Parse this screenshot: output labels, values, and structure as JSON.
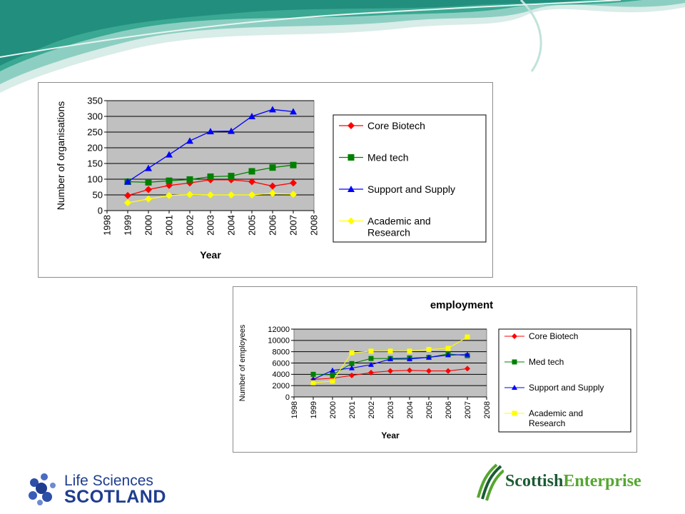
{
  "colors": {
    "plot_bg": "#c0c0c0",
    "core": "#ff0000",
    "med": "#008000",
    "support": "#0000ff",
    "academic": "#ffff00",
    "swoosh_teal": "#2a9d8f",
    "swoosh_light": "#a8d8d0"
  },
  "chart_data": [
    {
      "type": "line",
      "title": "",
      "xlabel": "Year",
      "ylabel": "Number of organisations",
      "categories": [
        "1998",
        "1999",
        "2000",
        "2001",
        "2002",
        "2003",
        "2004",
        "2005",
        "2006",
        "2007",
        "2008"
      ],
      "ylim": [
        0,
        350
      ],
      "yticks": [
        "0",
        "50",
        "100",
        "150",
        "200",
        "250",
        "300",
        "350"
      ],
      "grid": true,
      "legend_position": "right",
      "series": [
        {
          "name": "Core Biotech",
          "marker": "diamond",
          "values": [
            null,
            48,
            67,
            80,
            88,
            98,
            98,
            92,
            78,
            88,
            null
          ]
        },
        {
          "name": "Med tech",
          "marker": "square",
          "values": [
            null,
            92,
            90,
            95,
            99,
            108,
            110,
            125,
            137,
            145,
            null
          ]
        },
        {
          "name": "Support and Supply",
          "marker": "triangle",
          "values": [
            null,
            92,
            135,
            178,
            222,
            252,
            253,
            300,
            322,
            315,
            null
          ]
        },
        {
          "name": "Academic and Research",
          "marker": "diamond",
          "values": [
            null,
            25,
            37,
            48,
            51,
            50,
            50,
            50,
            55,
            52,
            null
          ]
        }
      ]
    },
    {
      "type": "line",
      "title": "employment",
      "xlabel": "Year",
      "ylabel": "Number of employees",
      "categories": [
        "1998",
        "1999",
        "2000",
        "2001",
        "2002",
        "2003",
        "2004",
        "2005",
        "2006",
        "2007",
        "2008"
      ],
      "ylim": [
        0,
        12000
      ],
      "yticks": [
        "0",
        "2000",
        "4000",
        "6000",
        "8000",
        "10000",
        "12000"
      ],
      "grid": true,
      "legend_position": "right",
      "series": [
        {
          "name": "Core Biotech",
          "marker": "diamond",
          "values": [
            null,
            3100,
            3300,
            3800,
            4300,
            4600,
            4700,
            4600,
            4600,
            5000,
            null
          ]
        },
        {
          "name": "Med tech",
          "marker": "square",
          "values": [
            null,
            4000,
            3900,
            5900,
            6800,
            6800,
            6900,
            7000,
            7600,
            7300,
            null
          ]
        },
        {
          "name": "Support and Supply",
          "marker": "triangle",
          "values": [
            null,
            3100,
            4700,
            5100,
            5700,
            6700,
            6700,
            7000,
            7400,
            7500,
            null
          ]
        },
        {
          "name": "Academic and Research",
          "marker": "square",
          "values": [
            null,
            2500,
            2800,
            7800,
            8100,
            8100,
            8100,
            8400,
            8600,
            10600,
            null
          ]
        }
      ]
    }
  ],
  "logos": {
    "life_sciences_line1": "Life Sciences",
    "life_sciences_line2": "SCOTLAND",
    "scottish_enterprise_a": "Scottish",
    "scottish_enterprise_b": "Enterprise"
  }
}
